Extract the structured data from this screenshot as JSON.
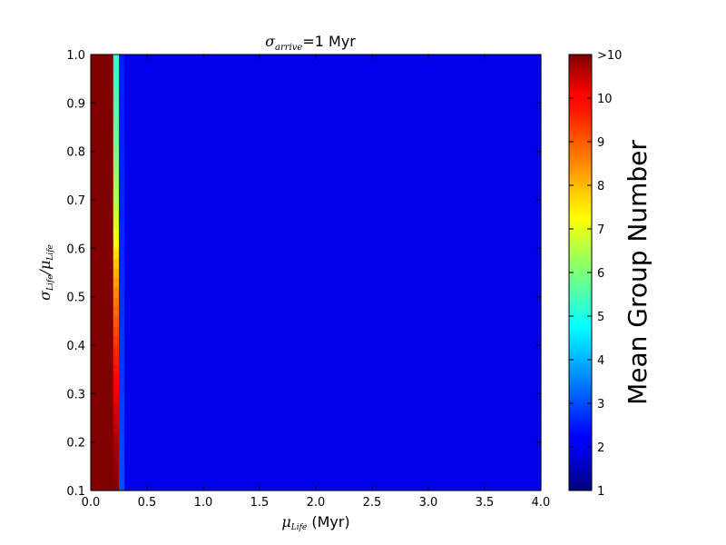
{
  "chart_data": {
    "type": "heatmap",
    "title": {
      "symbol": "σ",
      "subscript": "arrive",
      "suffix": "=1 Myr"
    },
    "xlabel": {
      "symbol": "μ",
      "subscript": "Life",
      "suffix": " (Myr)"
    },
    "ylabel": {
      "num_symbol": "σ",
      "num_subscript": "Life",
      "sep": "/",
      "den_symbol": "μ",
      "den_subscript": "Life"
    },
    "xlim": [
      0.0,
      4.0
    ],
    "ylim": [
      0.1,
      1.0
    ],
    "xticks": [
      "0.0",
      "0.5",
      "1.0",
      "1.5",
      "2.0",
      "2.5",
      "3.0",
      "3.5",
      "4.0"
    ],
    "yticks": [
      "0.1",
      "0.2",
      "0.3",
      "0.4",
      "0.5",
      "0.6",
      "0.7",
      "0.8",
      "0.9",
      "1.0"
    ],
    "colorbar": {
      "label": "Mean Group Number",
      "range": [
        1,
        11
      ],
      "ticks": [
        "1",
        "2",
        "3",
        "4",
        "5",
        "6",
        "7",
        "8",
        "9",
        "10",
        ">10"
      ],
      "colormap": "jet"
    },
    "columns": [
      {
        "x_start": 0.0,
        "x_end": 0.2,
        "description": "saturated",
        "profile": [
          {
            "y": 0.1,
            "value": 11
          },
          {
            "y": 1.0,
            "value": 11
          }
        ]
      },
      {
        "x_start": 0.2,
        "x_end": 0.25,
        "profile": [
          {
            "y": 0.1,
            "value": 11
          },
          {
            "y": 0.2,
            "value": 10.6
          },
          {
            "y": 0.25,
            "value": 10.2
          },
          {
            "y": 0.3,
            "value": 9.9
          },
          {
            "y": 0.35,
            "value": 9.6
          },
          {
            "y": 0.4,
            "value": 9.3
          },
          {
            "y": 0.45,
            "value": 8.9
          },
          {
            "y": 0.5,
            "value": 8.5
          },
          {
            "y": 0.55,
            "value": 8.0
          },
          {
            "y": 0.6,
            "value": 7.4
          },
          {
            "y": 0.65,
            "value": 6.9
          },
          {
            "y": 0.7,
            "value": 6.5
          },
          {
            "y": 0.8,
            "value": 5.9
          },
          {
            "y": 0.9,
            "value": 5.5
          },
          {
            "y": 1.0,
            "value": 5.2
          }
        ]
      },
      {
        "x_start": 0.25,
        "x_end": 0.3,
        "profile": [
          {
            "y": 0.1,
            "value": 3.0
          },
          {
            "y": 0.5,
            "value": 2.7
          },
          {
            "y": 1.0,
            "value": 2.5
          }
        ]
      },
      {
        "x_start": 0.3,
        "x_end": 4.0,
        "profile": [
          {
            "y": 0.1,
            "value": 2.05
          },
          {
            "y": 1.0,
            "value": 2.05
          }
        ]
      }
    ]
  }
}
